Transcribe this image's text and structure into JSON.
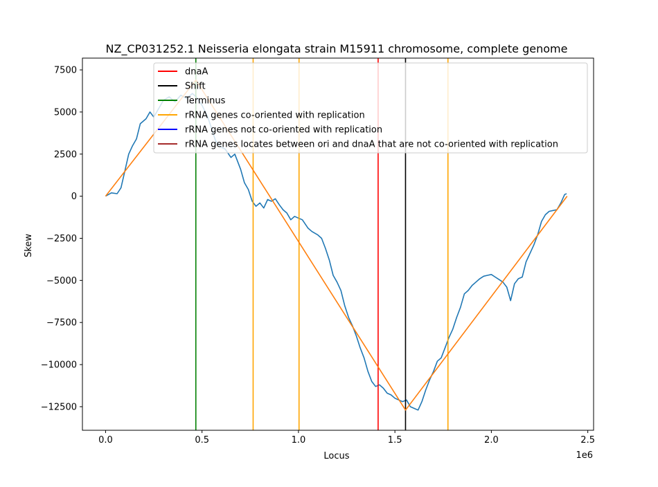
{
  "chart_data": {
    "type": "line",
    "title": "NZ_CP031252.1 Neisseria elongata strain M15911 chromosome, complete genome",
    "xlabel": "Locus",
    "ylabel": "Skew",
    "x_offset_label": "1e6",
    "xlim": [
      -0.12,
      2.53
    ],
    "ylim": [
      -13900,
      8200
    ],
    "xticks": [
      0.0,
      0.5,
      1.0,
      1.5,
      2.0,
      2.5
    ],
    "xtick_labels": [
      "0.0",
      "0.5",
      "1.0",
      "1.5",
      "2.0",
      "2.5"
    ],
    "yticks": [
      7500,
      5000,
      2500,
      0,
      -2500,
      -5000,
      -7500,
      -10000,
      -12500
    ],
    "ytick_labels": [
      "7500",
      "5000",
      "2500",
      "0",
      "−2500",
      "−5000",
      "−7500",
      "−10000",
      "−12500"
    ],
    "legend_position": "upper-center",
    "series": [
      {
        "kind": "skew",
        "color": "#1f77b4",
        "points": [
          [
            0.0,
            0
          ],
          [
            0.03,
            200
          ],
          [
            0.06,
            150
          ],
          [
            0.08,
            500
          ],
          [
            0.1,
            1500
          ],
          [
            0.12,
            2500
          ],
          [
            0.14,
            3000
          ],
          [
            0.16,
            3400
          ],
          [
            0.18,
            4300
          ],
          [
            0.21,
            4600
          ],
          [
            0.23,
            5000
          ],
          [
            0.25,
            4700
          ],
          [
            0.28,
            5300
          ],
          [
            0.3,
            5700
          ],
          [
            0.33,
            5900
          ],
          [
            0.36,
            5600
          ],
          [
            0.39,
            6000
          ],
          [
            0.42,
            5800
          ],
          [
            0.45,
            6100
          ],
          [
            0.47,
            5900
          ],
          [
            0.5,
            5400
          ],
          [
            0.53,
            4700
          ],
          [
            0.55,
            4000
          ],
          [
            0.57,
            3300
          ],
          [
            0.6,
            2900
          ],
          [
            0.62,
            2800
          ],
          [
            0.65,
            2300
          ],
          [
            0.67,
            2500
          ],
          [
            0.7,
            1600
          ],
          [
            0.72,
            800
          ],
          [
            0.74,
            400
          ],
          [
            0.76,
            -300
          ],
          [
            0.78,
            -600
          ],
          [
            0.8,
            -400
          ],
          [
            0.82,
            -700
          ],
          [
            0.84,
            -200
          ],
          [
            0.86,
            -300
          ],
          [
            0.88,
            -150
          ],
          [
            0.9,
            -500
          ],
          [
            0.92,
            -800
          ],
          [
            0.94,
            -1000
          ],
          [
            0.96,
            -1400
          ],
          [
            0.98,
            -1200
          ],
          [
            1.0,
            -1300
          ],
          [
            1.02,
            -1400
          ],
          [
            1.05,
            -1900
          ],
          [
            1.07,
            -2100
          ],
          [
            1.1,
            -2300
          ],
          [
            1.12,
            -2500
          ],
          [
            1.14,
            -3100
          ],
          [
            1.16,
            -3800
          ],
          [
            1.18,
            -4700
          ],
          [
            1.2,
            -5100
          ],
          [
            1.22,
            -5600
          ],
          [
            1.24,
            -6500
          ],
          [
            1.26,
            -7200
          ],
          [
            1.28,
            -7700
          ],
          [
            1.3,
            -8300
          ],
          [
            1.32,
            -9000
          ],
          [
            1.34,
            -9600
          ],
          [
            1.36,
            -10400
          ],
          [
            1.38,
            -11000
          ],
          [
            1.4,
            -11300
          ],
          [
            1.42,
            -11200
          ],
          [
            1.44,
            -11400
          ],
          [
            1.46,
            -11700
          ],
          [
            1.48,
            -11800
          ],
          [
            1.5,
            -12000
          ],
          [
            1.52,
            -12100
          ],
          [
            1.54,
            -12200
          ],
          [
            1.56,
            -12100
          ],
          [
            1.58,
            -12500
          ],
          [
            1.6,
            -12600
          ],
          [
            1.62,
            -12700
          ],
          [
            1.64,
            -12200
          ],
          [
            1.66,
            -11500
          ],
          [
            1.68,
            -10900
          ],
          [
            1.7,
            -10400
          ],
          [
            1.72,
            -9800
          ],
          [
            1.74,
            -9600
          ],
          [
            1.76,
            -9000
          ],
          [
            1.78,
            -8400
          ],
          [
            1.8,
            -7900
          ],
          [
            1.82,
            -7200
          ],
          [
            1.84,
            -6600
          ],
          [
            1.86,
            -5800
          ],
          [
            1.88,
            -5600
          ],
          [
            1.9,
            -5300
          ],
          [
            1.92,
            -5100
          ],
          [
            1.94,
            -4900
          ],
          [
            1.96,
            -4750
          ],
          [
            1.98,
            -4700
          ],
          [
            2.0,
            -4650
          ],
          [
            2.02,
            -4800
          ],
          [
            2.04,
            -4950
          ],
          [
            2.06,
            -5100
          ],
          [
            2.08,
            -5400
          ],
          [
            2.1,
            -6200
          ],
          [
            2.12,
            -5200
          ],
          [
            2.14,
            -4900
          ],
          [
            2.16,
            -4800
          ],
          [
            2.18,
            -3900
          ],
          [
            2.2,
            -3400
          ],
          [
            2.22,
            -2900
          ],
          [
            2.24,
            -2300
          ],
          [
            2.26,
            -1500
          ],
          [
            2.28,
            -1100
          ],
          [
            2.3,
            -900
          ],
          [
            2.32,
            -850
          ],
          [
            2.34,
            -800
          ],
          [
            2.36,
            -400
          ],
          [
            2.38,
            100
          ],
          [
            2.39,
            150
          ]
        ]
      },
      {
        "kind": "fit",
        "color": "#ff7f0e",
        "points": [
          [
            0.0,
            0
          ],
          [
            0.468,
            6900
          ],
          [
            1.555,
            -12700
          ],
          [
            2.393,
            0
          ]
        ]
      }
    ],
    "vlines": [
      {
        "x": 0.468,
        "color": "#008000",
        "legend": "Terminus"
      },
      {
        "x": 0.765,
        "color": "#ffa500",
        "legend": "rRNA genes co-oriented with replication"
      },
      {
        "x": 1.003,
        "color": "#ffa500",
        "legend": "rRNA genes co-oriented with replication"
      },
      {
        "x": 1.775,
        "color": "#ffa500",
        "legend": "rRNA genes co-oriented with replication"
      },
      {
        "x": 1.413,
        "color": "#ff0000",
        "legend": "dnaA"
      },
      {
        "x": 1.555,
        "color": "#000000",
        "legend": "Shift"
      }
    ],
    "legend": [
      {
        "label": "dnaA",
        "color": "#ff0000"
      },
      {
        "label": "Shift",
        "color": "#000000"
      },
      {
        "label": "Terminus",
        "color": "#008000"
      },
      {
        "label": "rRNA genes co-oriented with replication",
        "color": "#ffa500"
      },
      {
        "label": "rRNA genes not co-oriented with replication",
        "color": "#0000ff"
      },
      {
        "label": "rRNA genes locates between ori and dnaA that are not co-oriented with replication",
        "color": "#a52a2a"
      }
    ]
  }
}
